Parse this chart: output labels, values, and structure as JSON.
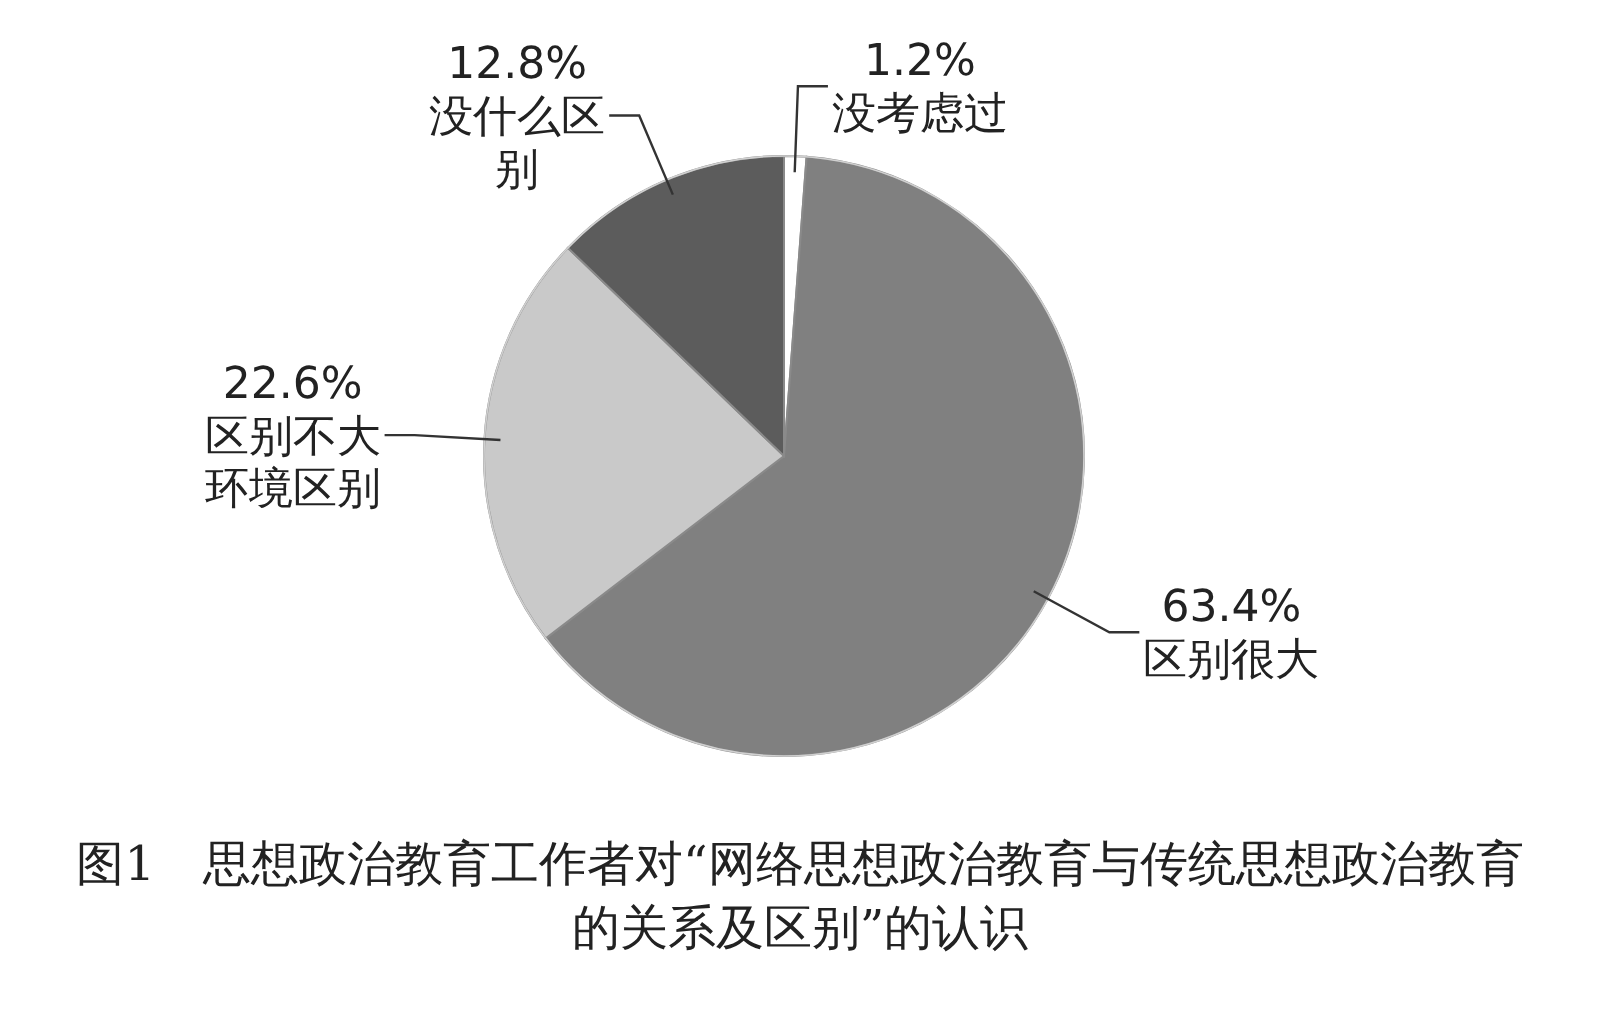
{
  "chart_data": {
    "type": "pie",
    "title": "图1　思想政治教育工作者对“网络思想政治教育与传统思想政治教育的关系及区别”的认识",
    "categories": [
      "没考虑过",
      "区别很大",
      "区别不大环境区别",
      "没什么区别"
    ],
    "values": [
      1.2,
      63.4,
      22.6,
      12.8
    ],
    "value_labels": [
      "1.2%",
      "63.4%",
      "22.6%",
      "12.8%"
    ],
    "colors": [
      "#ffffff",
      "#808080",
      "#c9c9c9",
      "#5c5c5c"
    ]
  }
}
